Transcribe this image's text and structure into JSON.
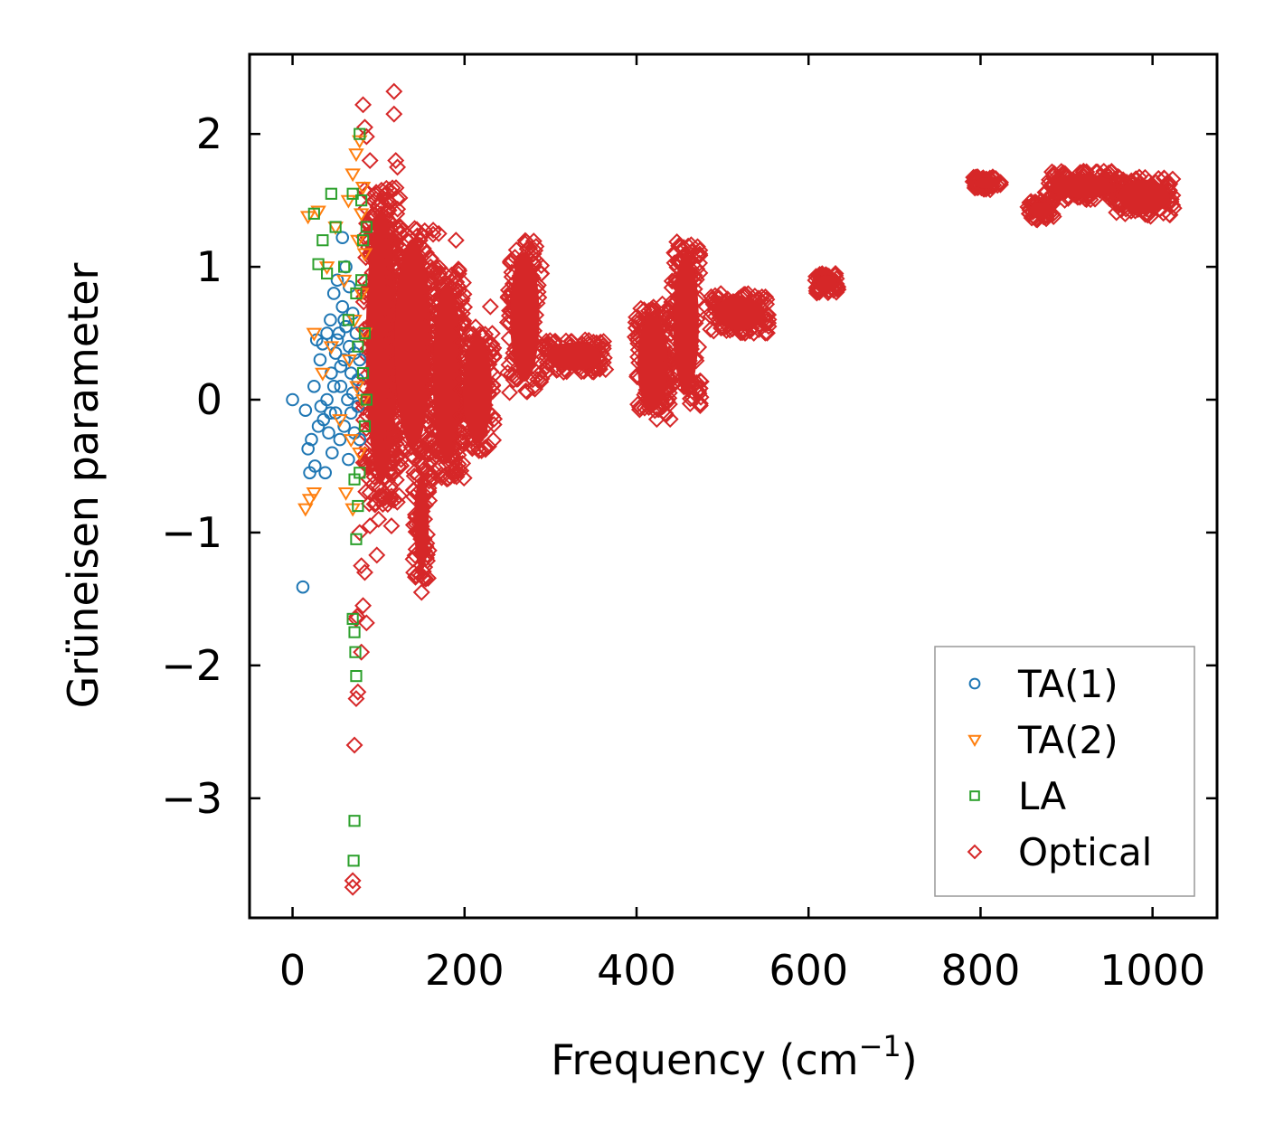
{
  "chart_data": {
    "type": "scatter",
    "title": "",
    "xlabel": "Frequency (cm",
    "xlabel_sup": "−1",
    "xlabel_close": ")",
    "ylabel": "Grüneisen parameter",
    "xlim": [
      -50,
      1075
    ],
    "ylim": [
      -3.9,
      2.6
    ],
    "x_ticks": [
      0,
      200,
      400,
      600,
      800,
      1000
    ],
    "x_tick_labels": [
      "0",
      "200",
      "400",
      "600",
      "800",
      "1000"
    ],
    "y_ticks": [
      -3,
      -2,
      -1,
      0,
      1,
      2
    ],
    "y_tick_labels": [
      "−3",
      "−2",
      "−1",
      "0",
      "1",
      "2"
    ],
    "legend_position": "lower-right",
    "series": [
      {
        "name": "TA(1)",
        "color": "#1f77b4",
        "marker": "circle",
        "points": [
          [
            0,
            0.0
          ],
          [
            12,
            -1.41
          ],
          [
            15,
            -0.08
          ],
          [
            18,
            -0.37
          ],
          [
            20,
            -0.55
          ],
          [
            22,
            -0.3
          ],
          [
            25,
            0.1
          ],
          [
            26,
            -0.5
          ],
          [
            28,
            0.45
          ],
          [
            30,
            -0.2
          ],
          [
            32,
            0.3
          ],
          [
            33,
            -0.05
          ],
          [
            35,
            0.42
          ],
          [
            36,
            -0.15
          ],
          [
            38,
            -0.55
          ],
          [
            40,
            0.5
          ],
          [
            40,
            0.0
          ],
          [
            42,
            -0.25
          ],
          [
            44,
            0.6
          ],
          [
            45,
            0.2
          ],
          [
            46,
            -0.4
          ],
          [
            48,
            0.8
          ],
          [
            50,
            0.35
          ],
          [
            50,
            -0.1
          ],
          [
            52,
            0.9
          ],
          [
            54,
            0.5
          ],
          [
            55,
            -0.3
          ],
          [
            56,
            0.1
          ],
          [
            58,
            1.22
          ],
          [
            58,
            0.7
          ],
          [
            60,
            0.3
          ],
          [
            60,
            -0.2
          ],
          [
            62,
            1.0
          ],
          [
            62,
            0.55
          ],
          [
            64,
            0.0
          ],
          [
            65,
            -0.45
          ],
          [
            66,
            0.85
          ],
          [
            66,
            0.4
          ],
          [
            68,
            0.2
          ],
          [
            68,
            -0.1
          ],
          [
            70,
            0.65
          ],
          [
            70,
            0.05
          ],
          [
            72,
            0.35
          ],
          [
            72,
            -0.25
          ],
          [
            74,
            0.5
          ],
          [
            76,
            0.15
          ],
          [
            76,
            -0.05
          ],
          [
            78,
            0.3
          ],
          [
            78,
            -0.3
          ],
          [
            56,
            0.25
          ],
          [
            52,
            0.45
          ],
          [
            48,
            0.1
          ],
          [
            44,
            -0.1
          ],
          [
            60,
            0.6
          ]
        ]
      },
      {
        "name": "TA(2)",
        "color": "#ff7f0e",
        "marker": "triangle",
        "points": [
          [
            15,
            -0.82
          ],
          [
            20,
            -0.75
          ],
          [
            25,
            -0.7
          ],
          [
            18,
            1.38
          ],
          [
            25,
            0.5
          ],
          [
            30,
            1.42
          ],
          [
            35,
            0.2
          ],
          [
            40,
            1.0
          ],
          [
            45,
            0.4
          ],
          [
            50,
            1.3
          ],
          [
            55,
            -0.15
          ],
          [
            60,
            0.9
          ],
          [
            62,
            -0.7
          ],
          [
            65,
            1.5
          ],
          [
            66,
            0.3
          ],
          [
            68,
            -0.3
          ],
          [
            70,
            1.7
          ],
          [
            70,
            -0.82
          ],
          [
            72,
            0.6
          ],
          [
            74,
            1.85
          ],
          [
            75,
            0.1
          ],
          [
            76,
            1.2
          ],
          [
            78,
            1.95
          ],
          [
            78,
            -0.4
          ],
          [
            80,
            1.4
          ],
          [
            80,
            0.8
          ],
          [
            82,
            0.0
          ],
          [
            82,
            1.6
          ],
          [
            84,
            0.5
          ],
          [
            84,
            1.1
          ]
        ]
      },
      {
        "name": "LA",
        "color": "#2ca02c",
        "marker": "square",
        "points": [
          [
            25,
            1.4
          ],
          [
            30,
            1.02
          ],
          [
            35,
            1.2
          ],
          [
            40,
            0.95
          ],
          [
            45,
            1.55
          ],
          [
            50,
            1.3
          ],
          [
            60,
            1.0
          ],
          [
            65,
            0.6
          ],
          [
            70,
            1.55
          ],
          [
            72,
            -0.6
          ],
          [
            70,
            -1.65
          ],
          [
            72,
            -1.75
          ],
          [
            73,
            -1.9
          ],
          [
            74,
            -2.08
          ],
          [
            72,
            -3.17
          ],
          [
            71,
            -3.47
          ],
          [
            74,
            -1.05
          ],
          [
            76,
            -0.8
          ],
          [
            78,
            2.0
          ],
          [
            80,
            1.5
          ],
          [
            80,
            0.9
          ],
          [
            82,
            1.2
          ],
          [
            82,
            0.2
          ],
          [
            84,
            -0.2
          ],
          [
            84,
            0.5
          ],
          [
            86,
            1.3
          ],
          [
            86,
            0.0
          ],
          [
            78,
            -0.55
          ],
          [
            76,
            0.4
          ],
          [
            74,
            0.8
          ]
        ]
      },
      {
        "name": "Optical",
        "color": "#d62728",
        "marker": "diamond",
        "points": [
          [
            70,
            -3.67
          ],
          [
            70,
            -3.62
          ],
          [
            72,
            -2.6
          ],
          [
            74,
            -2.25
          ],
          [
            76,
            -2.2
          ],
          [
            80,
            -1.9
          ],
          [
            82,
            -1.55
          ],
          [
            86,
            -1.68
          ],
          [
            80,
            -1.25
          ],
          [
            84,
            -1.3
          ],
          [
            78,
            -1.0
          ],
          [
            90,
            -0.95
          ],
          [
            98,
            -1.17
          ],
          [
            100,
            -0.9
          ],
          [
            105,
            -0.75
          ],
          [
            115,
            -0.95
          ],
          [
            82,
            2.22
          ],
          [
            84,
            2.05
          ],
          [
            86,
            1.98
          ],
          [
            118,
            2.32
          ],
          [
            118,
            2.15
          ],
          [
            120,
            1.8
          ],
          [
            122,
            1.75
          ],
          [
            150,
            -1.45
          ],
          [
            155,
            -1.35
          ],
          [
            75,
            -1.63
          ],
          [
            74,
            -1.65
          ],
          [
            90,
            1.8
          ],
          [
            110,
            1.5
          ],
          [
            170,
            1.25
          ],
          [
            190,
            1.2
          ],
          [
            230,
            0.7
          ],
          [
            430,
            0.72
          ],
          [
            440,
            0.6
          ]
        ],
        "clusters": [
          {
            "xmin": 82,
            "xmax": 125,
            "ymin": -0.8,
            "ymax": 1.6,
            "n": 320
          },
          {
            "xmin": 115,
            "xmax": 165,
            "ymin": -0.5,
            "ymax": 1.35,
            "n": 260
          },
          {
            "xmin": 140,
            "xmax": 160,
            "ymin": -1.35,
            "ymax": -0.5,
            "n": 60
          },
          {
            "xmin": 160,
            "xmax": 200,
            "ymin": -0.6,
            "ymax": 1.0,
            "n": 200
          },
          {
            "xmin": 195,
            "xmax": 235,
            "ymin": -0.4,
            "ymax": 0.55,
            "n": 120
          },
          {
            "xmin": 250,
            "xmax": 290,
            "ymin": 0.05,
            "ymax": 1.2,
            "n": 110
          },
          {
            "xmin": 290,
            "xmax": 365,
            "ymin": 0.2,
            "ymax": 0.45,
            "n": 90
          },
          {
            "xmin": 398,
            "xmax": 440,
            "ymin": -0.15,
            "ymax": 0.7,
            "n": 130
          },
          {
            "xmin": 440,
            "xmax": 475,
            "ymin": -0.05,
            "ymax": 1.2,
            "n": 120
          },
          {
            "xmin": 485,
            "xmax": 555,
            "ymin": 0.5,
            "ymax": 0.8,
            "n": 110
          },
          {
            "xmin": 608,
            "xmax": 635,
            "ymin": 0.8,
            "ymax": 0.95,
            "n": 50
          },
          {
            "xmin": 790,
            "xmax": 825,
            "ymin": 1.58,
            "ymax": 1.68,
            "n": 50
          },
          {
            "xmin": 855,
            "xmax": 885,
            "ymin": 1.35,
            "ymax": 1.5,
            "n": 50
          },
          {
            "xmin": 875,
            "xmax": 960,
            "ymin": 1.5,
            "ymax": 1.72,
            "n": 120
          },
          {
            "xmin": 955,
            "xmax": 1025,
            "ymin": 1.38,
            "ymax": 1.68,
            "n": 100
          }
        ]
      }
    ]
  }
}
